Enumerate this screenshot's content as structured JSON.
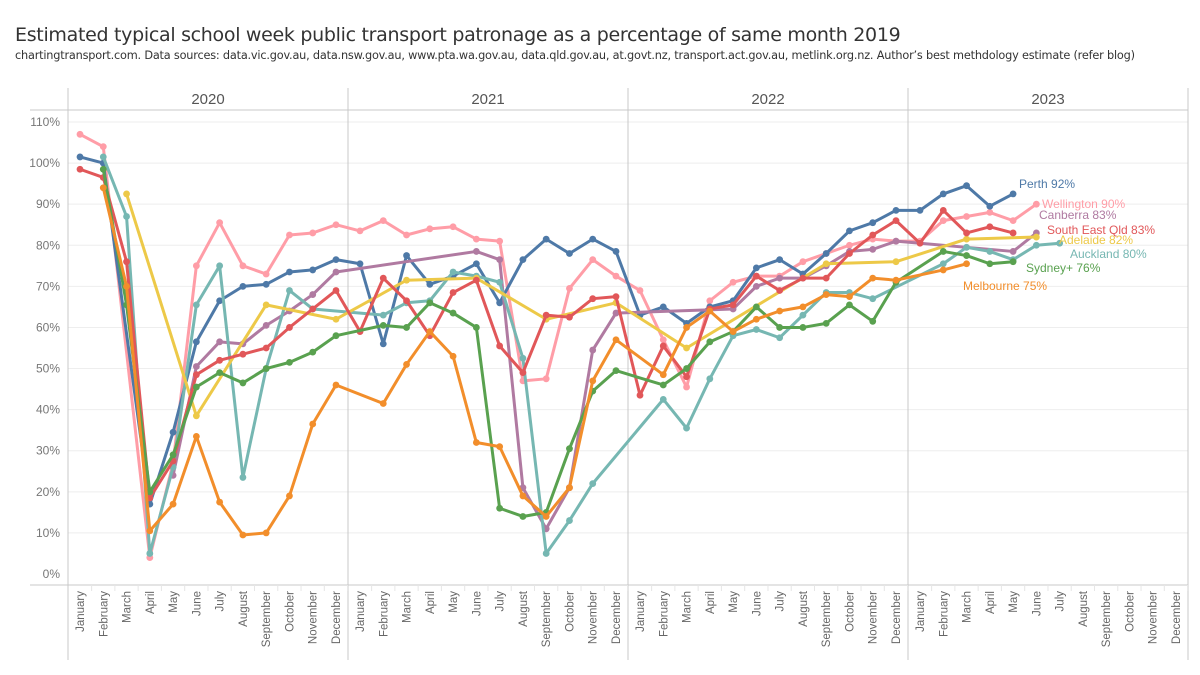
{
  "header": {
    "title": "Estimated typical school week public transport patronage as a percentage of same month 2019",
    "subtitle": "chartingtransport.com. Data sources: data.vic.gov.au, data.nsw.gov.au, www.pta.wa.gov.au, data.qld.gov.au, at.govt.nz, transport.act.gov.au, metlink.org.nz. Author’s best methdology estimate (refer blog)"
  },
  "chart_data": {
    "type": "line",
    "title": "Estimated typical school week public transport patronage as a percentage of same month 2019",
    "xlabel": "",
    "ylabel": "",
    "ylim": [
      0,
      110
    ],
    "yticks": [
      "0%",
      "10%",
      "20%",
      "30%",
      "40%",
      "50%",
      "60%",
      "70%",
      "80%",
      "90%",
      "100%",
      "110%"
    ],
    "grid": true,
    "legend": "direct-labels-right",
    "panels": [
      "2020",
      "2021",
      "2022",
      "2023"
    ],
    "months": [
      "January",
      "February",
      "March",
      "April",
      "May",
      "June",
      "July",
      "August",
      "September",
      "October",
      "November",
      "December"
    ],
    "series": [
      {
        "name": "Wellington",
        "label": "Wellington 90%",
        "color": "#FF9DA7",
        "values": [
          107,
          104,
          null,
          4,
          27,
          75,
          85.5,
          75,
          73,
          82.5,
          83,
          85,
          83.5,
          86,
          82.5,
          84,
          84.5,
          81.5,
          81,
          47,
          47.5,
          69.5,
          76.5,
          72.5,
          69,
          57,
          45.5,
          66.5,
          71,
          72.5,
          72.5,
          76,
          78,
          80,
          81.5,
          81,
          81,
          86,
          87,
          88,
          86,
          90,
          null,
          null,
          null,
          null,
          null,
          null
        ]
      },
      {
        "name": "Perth",
        "label": "Perth  92%",
        "color": "#4E79A7",
        "values": [
          101.5,
          100,
          null,
          17,
          34.5,
          56.5,
          66.5,
          70,
          70.5,
          73.5,
          74,
          76.5,
          75.5,
          56,
          77.5,
          70.5,
          72.5,
          75.5,
          66,
          76.5,
          81.5,
          78,
          81.5,
          78.5,
          63,
          65,
          61,
          65,
          66.5,
          74.5,
          76.5,
          73,
          78,
          83.5,
          85.5,
          88.5,
          88.5,
          92.5,
          94.5,
          89.5,
          92.5,
          null,
          null,
          null,
          null,
          null,
          null,
          null
        ]
      },
      {
        "name": "Canberra",
        "label": "Canberra 83%",
        "color": "#B07AA1",
        "values": [
          null,
          null,
          null,
          null,
          24,
          50.5,
          56.5,
          56,
          60.5,
          64,
          68,
          73.5,
          null,
          null,
          null,
          null,
          null,
          78.5,
          76.5,
          21,
          11,
          21,
          54.5,
          63.5,
          null,
          null,
          null,
          null,
          64.5,
          70,
          72,
          72,
          75,
          78.5,
          79,
          81,
          null,
          null,
          null,
          null,
          78.5,
          83,
          null,
          null,
          null,
          null,
          null,
          null
        ]
      },
      {
        "name": "South East Qld",
        "label": "South East Qld 83%",
        "color": "#E15759",
        "values": [
          98.5,
          96.5,
          76,
          18.5,
          27.5,
          48.5,
          52,
          53.5,
          55,
          60,
          64.5,
          69,
          59,
          72,
          66.5,
          58,
          68.5,
          71.5,
          55.5,
          49,
          63,
          62.5,
          67,
          67.5,
          43.5,
          55.5,
          48,
          64.5,
          65.5,
          72.5,
          69,
          72,
          72,
          78,
          82.5,
          86,
          80.5,
          88.5,
          83,
          84.5,
          83,
          null,
          null,
          null,
          null,
          null,
          null,
          null
        ]
      },
      {
        "name": "Adelaide",
        "label": "Adelaide 82%",
        "color": "#EDC948",
        "values": [
          null,
          null,
          92.5,
          null,
          null,
          38.5,
          null,
          null,
          65.5,
          null,
          null,
          62,
          null,
          null,
          71.5,
          null,
          null,
          72,
          null,
          null,
          62,
          null,
          null,
          66,
          null,
          null,
          55,
          null,
          null,
          null,
          null,
          null,
          75.5,
          null,
          null,
          76,
          null,
          null,
          81.5,
          null,
          null,
          82,
          null,
          null,
          null,
          null,
          null,
          null
        ]
      },
      {
        "name": "Auckland",
        "label": "Auckland  80%",
        "color": "#76B7B2",
        "values": [
          null,
          101.5,
          87,
          5,
          26,
          65.5,
          75,
          23.5,
          50,
          69,
          64.5,
          null,
          null,
          63,
          66,
          66.5,
          73.5,
          72.5,
          71,
          52.5,
          5,
          13,
          22,
          null,
          null,
          42.5,
          35.5,
          47.5,
          58,
          59.5,
          57.5,
          63,
          68.5,
          68.5,
          67,
          null,
          null,
          75.5,
          79.5,
          78.5,
          76.5,
          80,
          80.5,
          null,
          null,
          null,
          null,
          null
        ]
      },
      {
        "name": "Sydney+",
        "label": "Sydney+ 76%",
        "color": "#59A14F",
        "values": [
          null,
          98.5,
          65.5,
          20,
          29,
          45.5,
          49,
          46.5,
          50,
          51.5,
          54,
          58,
          null,
          60.5,
          60,
          66,
          63.5,
          60,
          16,
          14,
          15,
          30.5,
          44.5,
          49.5,
          null,
          46,
          50,
          56.5,
          59,
          65,
          60,
          60,
          61,
          65.5,
          61.5,
          71,
          null,
          78.5,
          77.5,
          75.5,
          76,
          null,
          null,
          null,
          null,
          null,
          null,
          null
        ]
      },
      {
        "name": "Melbourne",
        "label": "Melbourne  75%",
        "color": "#F28E2B",
        "values": [
          null,
          94,
          70,
          10.5,
          17,
          33.5,
          17.5,
          9.5,
          10,
          19,
          36.5,
          46,
          null,
          41.5,
          51,
          59,
          53,
          32,
          31,
          19,
          14,
          21,
          47,
          57,
          null,
          48.5,
          60,
          64,
          59,
          62,
          64,
          65,
          68,
          67.5,
          72,
          71.5,
          null,
          74,
          75.5,
          null,
          null,
          null,
          null,
          null,
          null,
          null,
          null,
          null
        ]
      }
    ]
  }
}
